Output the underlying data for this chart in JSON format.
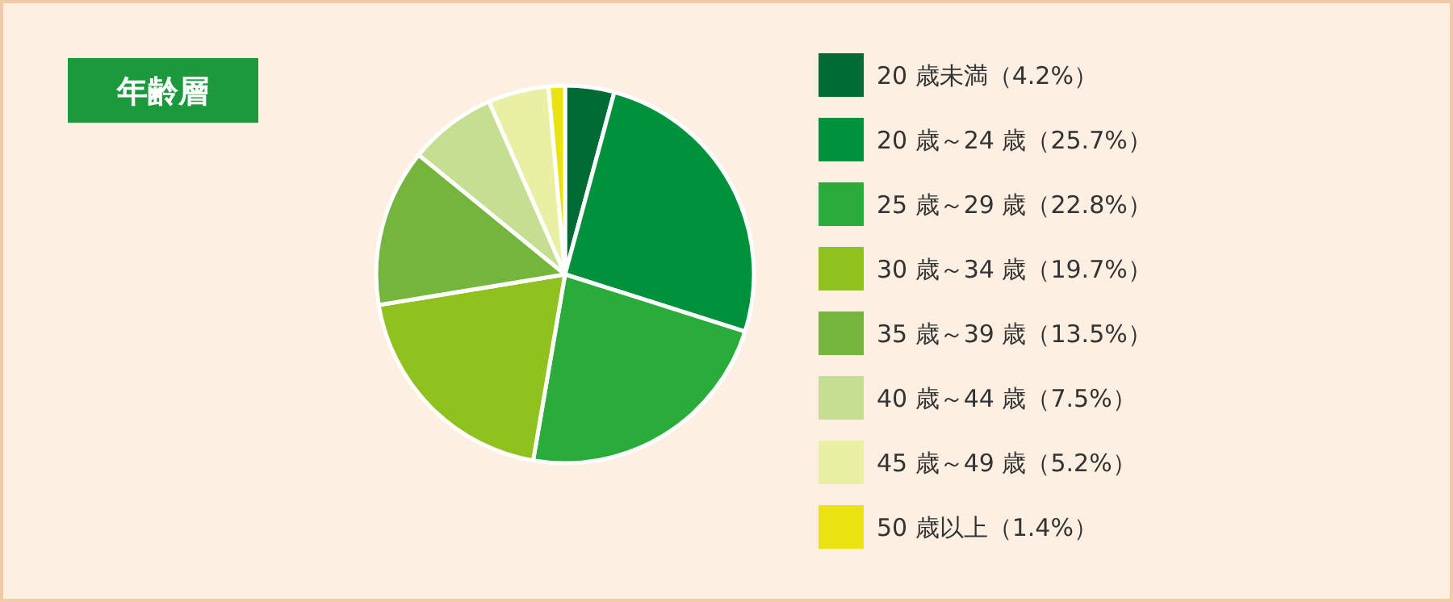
{
  "chart_data": {
    "type": "pie",
    "title": "年齢層",
    "categories": [
      "20 歳未満（4.2%）",
      "20 歳～24 歳（25.7%）",
      "25 歳～29 歳（22.8%）",
      "30 歳～34 歳（19.7%）",
      "35 歳～39 歳（13.5%）",
      "40 歳～44 歳（7.5%）",
      "45 歳～49 歳（5.2%）",
      "50 歳以上（1.4%）"
    ],
    "values": [
      4.2,
      25.7,
      22.8,
      19.7,
      13.5,
      7.5,
      5.2,
      1.4
    ],
    "colors": [
      "#006b35",
      "#00913c",
      "#2aac3a",
      "#8fc21f",
      "#74b53b",
      "#c5de92",
      "#e9f0a3",
      "#ebe30f"
    ],
    "legend": "right"
  }
}
